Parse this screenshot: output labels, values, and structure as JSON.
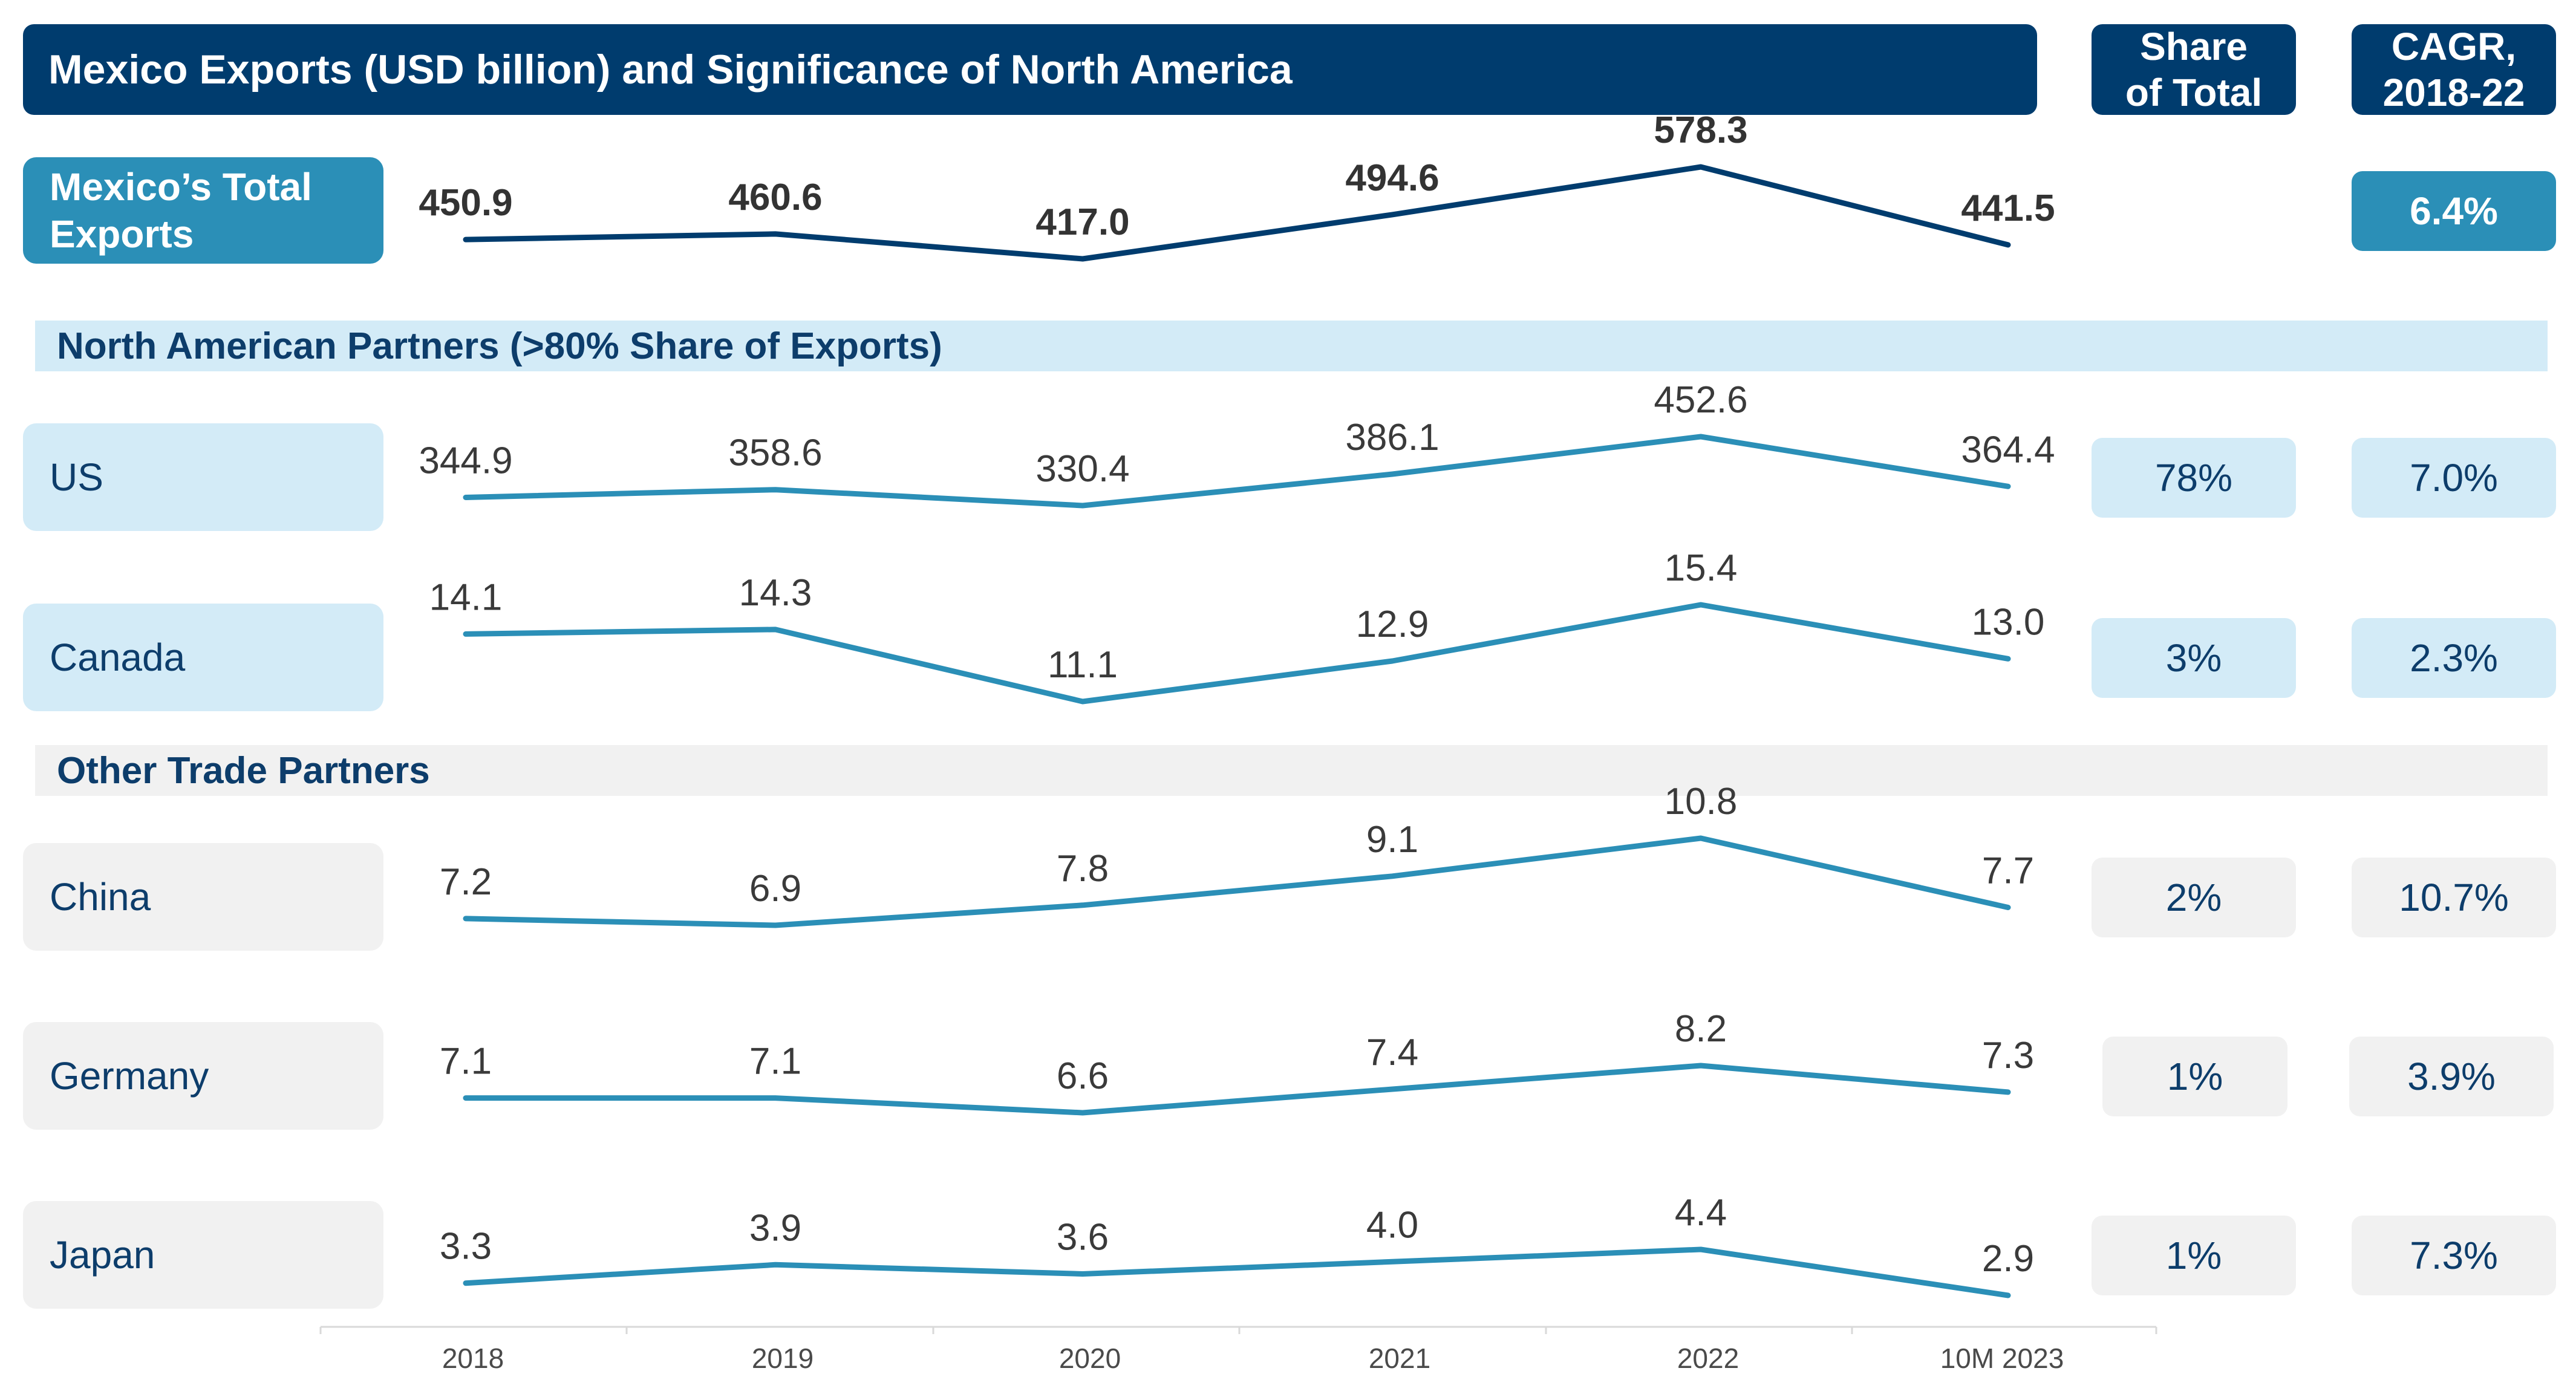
{
  "title": "Mexico Exports (USD billion) and Significance of North America",
  "headers": {
    "share": [
      "Share",
      "of Total"
    ],
    "cagr": [
      "CAGR,",
      "2018-22"
    ]
  },
  "total": {
    "label_lines": [
      "Mexico’s Total",
      "Exports"
    ],
    "cagr": "6.4%"
  },
  "sections": {
    "north_america": "North American Partners (>80% Share of Exports)",
    "other": "Other Trade Partners"
  },
  "rows": [
    {
      "label": "US",
      "share": "78%",
      "cagr": "7.0%"
    },
    {
      "label": "Canada",
      "share": "3%",
      "cagr": "2.3%"
    },
    {
      "label": "China",
      "share": "2%",
      "cagr": "10.7%"
    },
    {
      "label": "Germany",
      "share": "1%",
      "cagr": "3.9%"
    },
    {
      "label": "Japan",
      "share": "1%",
      "cagr": "7.3%"
    }
  ],
  "colors": {
    "dark_navy": "#003c6e",
    "teal": "#2b8fb7",
    "light_blue": "#d3ebf7",
    "light_grey": "#f1f1f1",
    "label_text": "#0d3d6b"
  },
  "chart_data": {
    "type": "line",
    "categories": [
      "2018",
      "2019",
      "2020",
      "2021",
      "2022",
      "10M 2023"
    ],
    "series": [
      {
        "name": "Mexico’s Total Exports",
        "values": [
          450.9,
          460.6,
          417.0,
          494.6,
          578.3,
          441.5
        ],
        "labels": [
          "450.9",
          "460.6",
          "417.0",
          "494.6",
          "578.3",
          "441.5"
        ]
      },
      {
        "name": "US",
        "values": [
          344.9,
          358.6,
          330.4,
          386.1,
          452.6,
          364.4
        ],
        "labels": [
          "344.9",
          "358.6",
          "330.4",
          "386.1",
          "452.6",
          "364.4"
        ]
      },
      {
        "name": "Canada",
        "values": [
          14.1,
          14.3,
          11.1,
          12.9,
          15.4,
          13.0
        ],
        "labels": [
          "14.1",
          "14.3",
          "11.1",
          "12.9",
          "15.4",
          "13.0"
        ]
      },
      {
        "name": "China",
        "values": [
          7.2,
          6.9,
          7.8,
          9.1,
          10.8,
          7.7
        ],
        "labels": [
          "7.2",
          "6.9",
          "7.8",
          "9.1",
          "10.8",
          "7.7"
        ]
      },
      {
        "name": "Germany",
        "values": [
          7.1,
          7.1,
          6.6,
          7.4,
          8.2,
          7.3
        ],
        "labels": [
          "7.1",
          "7.1",
          "6.6",
          "7.4",
          "8.2",
          "7.3"
        ]
      },
      {
        "name": "Japan",
        "values": [
          3.3,
          3.9,
          3.6,
          4.0,
          4.4,
          2.9
        ],
        "labels": [
          "3.3",
          "3.9",
          "3.6",
          "4.0",
          "4.4",
          "2.9"
        ]
      }
    ]
  }
}
